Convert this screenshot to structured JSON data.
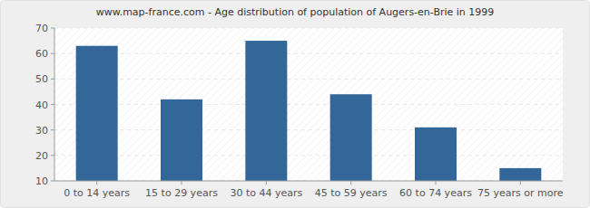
{
  "chart_data": {
    "type": "bar",
    "title": "www.map-france.com - Age distribution of population of Augers-en-Brie in 1999",
    "categories": [
      "0 to 14 years",
      "15 to 29 years",
      "30 to 44 years",
      "45 to 59 years",
      "60 to 74 years",
      "75 years or more"
    ],
    "values": [
      63,
      42,
      65,
      44,
      31,
      15
    ],
    "color": "#336699",
    "ylim": [
      10,
      70
    ],
    "yticks": [
      10,
      20,
      30,
      40,
      50,
      60,
      70
    ],
    "grid": true
  }
}
